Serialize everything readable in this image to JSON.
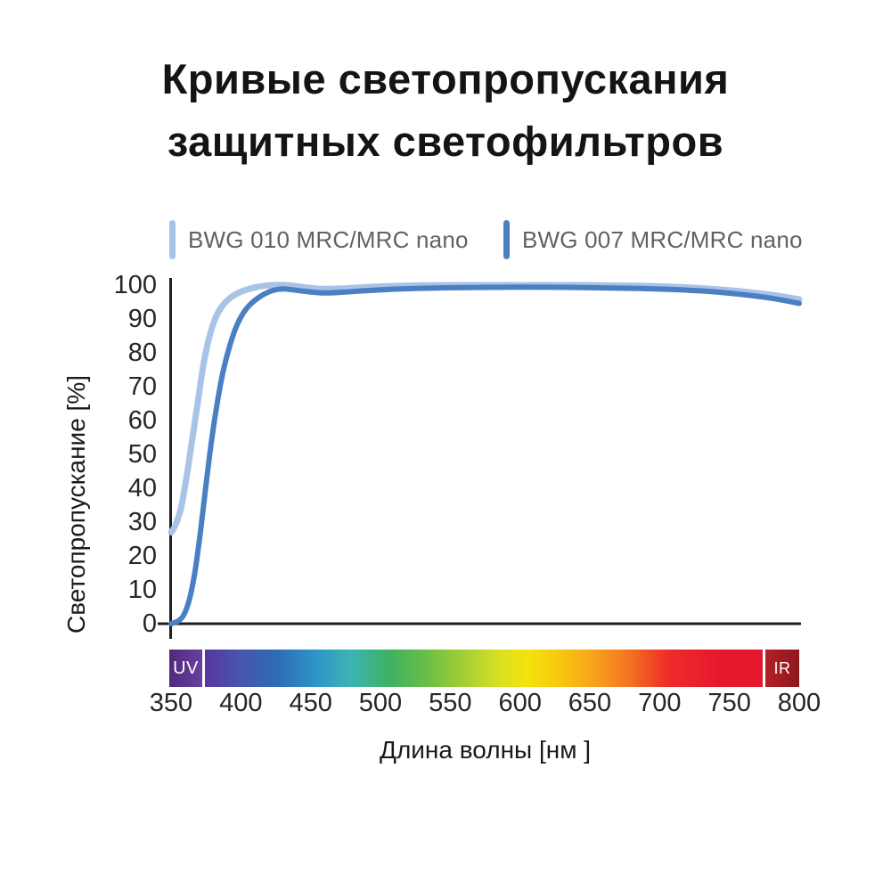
{
  "chart_data": {
    "type": "line",
    "title": "Кривые светопропускания защитных светофильтров",
    "xlabel": "Длина волны [нм ]",
    "ylabel": "Светопропускание [%]",
    "xlim": [
      350,
      800
    ],
    "ylim": [
      0,
      100
    ],
    "x_ticks": [
      350,
      400,
      450,
      500,
      550,
      600,
      650,
      700,
      750,
      800
    ],
    "y_ticks": [
      0,
      10,
      20,
      30,
      40,
      50,
      60,
      70,
      80,
      90,
      100
    ],
    "grid": false,
    "legend_position": "top",
    "series": [
      {
        "name": "BWG 010 MRC/MRC nano",
        "color": "#a9c3e7",
        "points": [
          [
            350,
            27
          ],
          [
            353,
            29
          ],
          [
            357,
            34
          ],
          [
            361,
            43
          ],
          [
            365,
            54
          ],
          [
            369,
            65
          ],
          [
            373,
            76
          ],
          [
            377,
            84
          ],
          [
            382,
            90.5
          ],
          [
            388,
            94.5
          ],
          [
            395,
            97
          ],
          [
            403,
            98.5
          ],
          [
            412,
            99.5
          ],
          [
            422,
            100
          ],
          [
            433,
            100
          ],
          [
            445,
            99.4
          ],
          [
            458,
            98.9
          ],
          [
            472,
            99
          ],
          [
            495,
            99.5
          ],
          [
            525,
            99.9
          ],
          [
            560,
            100
          ],
          [
            600,
            100
          ],
          [
            645,
            100
          ],
          [
            685,
            99.8
          ],
          [
            715,
            99.4
          ],
          [
            740,
            98.8
          ],
          [
            762,
            98
          ],
          [
            782,
            97
          ],
          [
            800,
            95.8
          ]
        ]
      },
      {
        "name": "BWG 007 MRC/MRC nano",
        "color": "#4b7fc4",
        "points": [
          [
            350,
            0
          ],
          [
            355,
            0.8
          ],
          [
            359,
            2.5
          ],
          [
            363,
            7
          ],
          [
            367,
            15
          ],
          [
            371,
            27
          ],
          [
            375,
            41
          ],
          [
            379,
            54
          ],
          [
            383,
            65
          ],
          [
            387,
            74
          ],
          [
            392,
            82
          ],
          [
            397,
            88
          ],
          [
            403,
            92.5
          ],
          [
            410,
            95.5
          ],
          [
            420,
            98
          ],
          [
            430,
            98.9
          ],
          [
            443,
            98.3
          ],
          [
            458,
            97.7
          ],
          [
            472,
            97.9
          ],
          [
            495,
            98.5
          ],
          [
            525,
            99
          ],
          [
            560,
            99.3
          ],
          [
            600,
            99.4
          ],
          [
            645,
            99.3
          ],
          [
            685,
            99
          ],
          [
            715,
            98.6
          ],
          [
            740,
            98
          ],
          [
            762,
            97.1
          ],
          [
            782,
            96
          ],
          [
            800,
            94.6
          ]
        ]
      }
    ]
  },
  "spectrum": {
    "uv_label": "UV",
    "ir_label": "IR",
    "gradient_stops": [
      [
        "#5936a2",
        0
      ],
      [
        "#4854ab",
        6
      ],
      [
        "#2d6cb8",
        13
      ],
      [
        "#2e95c6",
        20
      ],
      [
        "#3bb4b4",
        26
      ],
      [
        "#3eb163",
        33
      ],
      [
        "#6cbe45",
        40
      ],
      [
        "#a8d034",
        47
      ],
      [
        "#dce021",
        53
      ],
      [
        "#f2e30c",
        58
      ],
      [
        "#f7c60f",
        64
      ],
      [
        "#f8a01d",
        70
      ],
      [
        "#f4741f",
        76
      ],
      [
        "#ee2c28",
        83
      ],
      [
        "#e7182d",
        92
      ],
      [
        "#e5172f",
        100
      ]
    ]
  },
  "colors": {
    "axis": "#1f1f1f",
    "title_text": "#141414",
    "legend_text": "#5d6269",
    "tick_text": "#23262b"
  }
}
